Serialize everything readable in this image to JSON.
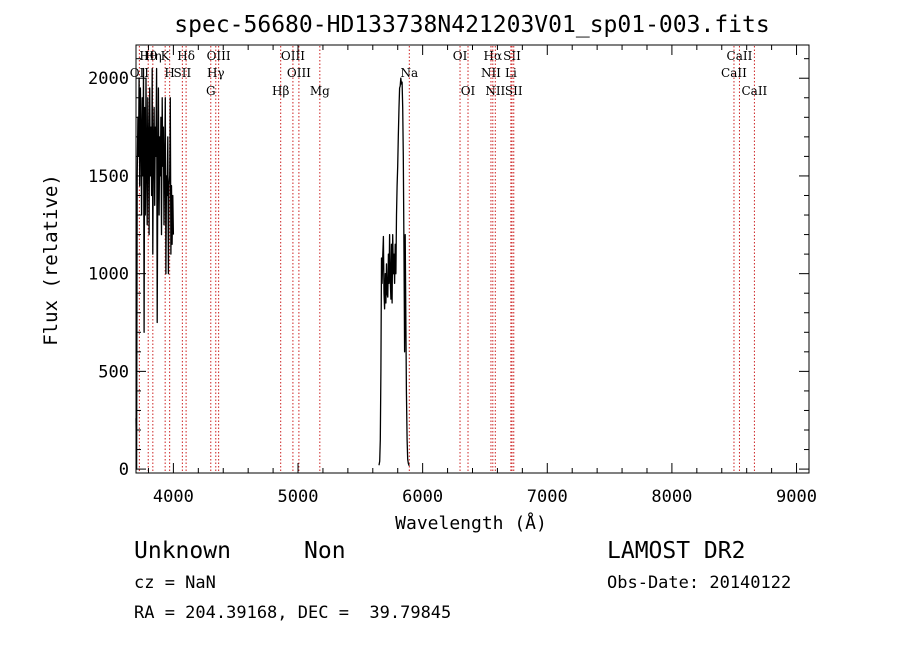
{
  "chart_data": {
    "type": "line",
    "title": "spec-56680-HD133738N421203V01_sp01-003.fits",
    "xlabel": "Wavelength (Å)",
    "ylabel": "Flux (relative)",
    "xlim": [
      3700,
      9100
    ],
    "ylim": [
      -20,
      2170
    ],
    "x_ticks": [
      4000,
      5000,
      6000,
      7000,
      8000,
      9000
    ],
    "x_tick_labels": [
      "4000",
      "5000",
      "6000",
      "7000",
      "8000",
      "9000"
    ],
    "y_ticks": [
      0,
      500,
      1000,
      1500,
      2000
    ],
    "y_tick_labels": [
      "0",
      "500",
      "1000",
      "1500",
      "2000"
    ],
    "grid": false,
    "line_color": "#000000",
    "marker_color": "#cc2222",
    "series": [
      {
        "segments": [
          {
            "x": [
              3700,
              3705,
              3710,
              3715,
              3720,
              3725,
              3730,
              3735,
              3740,
              3745,
              3750,
              3755,
              3760,
              3765,
              3770,
              3775,
              3780,
              3785,
              3790,
              3795,
              3800,
              3805,
              3810,
              3815,
              3820,
              3825,
              3830,
              3835,
              3840,
              3845,
              3850,
              3855,
              3860,
              3865,
              3870,
              3875,
              3880,
              3885,
              3890,
              3895,
              3900,
              3905,
              3910,
              3915,
              3920,
              3925,
              3930,
              3935,
              3940,
              3945,
              3950,
              3955,
              3960,
              3965,
              3970,
              3975,
              3980,
              3985,
              3990,
              3995,
              4000
            ],
            "y": [
              260,
              0,
              1500,
              1800,
              1600,
              2000,
              1450,
              1950,
              1700,
              1300,
              1900,
              1500,
              2050,
              700,
              1850,
              1300,
              2000,
              1550,
              1250,
              1900,
              1650,
              1200,
              1950,
              1500,
              1750,
              1400,
              2050,
              1100,
              1650,
              1850,
              1350,
              1750,
              1600,
              2050,
              750,
              1500,
              1950,
              1300,
              1700,
              1500,
              1800,
              1200,
              1900,
              1550,
              1750,
              1250,
              1600,
              1900,
              1000,
              1500,
              1400,
              1700,
              1000,
              1450,
              1500,
              1900,
              1100,
              1450,
              1150,
              1400,
              1200
            ]
          },
          {
            "x": [
              5650,
              5655,
              5660,
              5665,
              5670,
              5675,
              5680,
              5685,
              5690,
              5695,
              5700,
              5705,
              5710,
              5715,
              5720,
              5725,
              5730,
              5735,
              5740,
              5745,
              5750,
              5755,
              5760,
              5765,
              5770,
              5775,
              5780,
              5785,
              5790,
              5795,
              5800,
              5805,
              5810,
              5815,
              5820,
              5825,
              5830,
              5835,
              5840,
              5845,
              5850,
              5855,
              5860,
              5865,
              5870,
              5875,
              5880,
              5885,
              5890,
              5895
            ],
            "y": [
              20,
              40,
              150,
              500,
              1080,
              950,
              1100,
              1190,
              900,
              820,
              1000,
              850,
              1050,
              900,
              880,
              1100,
              950,
              1200,
              980,
              870,
              1150,
              850,
              1200,
              1000,
              1100,
              950,
              1150,
              1000,
              1300,
              1450,
              1550,
              1700,
              1850,
              1950,
              1960,
              2000,
              1970,
              1980,
              1850,
              1600,
              1100,
              600,
              1200,
              800,
              400,
              150,
              50,
              30,
              20,
              20
            ]
          }
        ]
      }
    ],
    "lines": [
      {
        "label": "Hθ",
        "x": 3798,
        "row": 0
      },
      {
        "label": "Hη",
        "x": 3835,
        "row": 0
      },
      {
        "label": "K",
        "x": 3934,
        "row": 0
      },
      {
        "label": "Hδ",
        "x": 4102,
        "row": 0
      },
      {
        "label": "OIII",
        "x": 4363,
        "row": 0
      },
      {
        "label": "OIII",
        "x": 4959,
        "row": 0
      },
      {
        "label": "OI",
        "x": 6300,
        "row": 0
      },
      {
        "label": "Hα",
        "x": 6563,
        "row": 0
      },
      {
        "label": "SII",
        "x": 6717,
        "row": 0
      },
      {
        "label": "CaII",
        "x": 8542,
        "row": 0
      },
      {
        "label": "OII",
        "x": 3727,
        "row": 1
      },
      {
        "label": "H",
        "x": 3970,
        "row": 1
      },
      {
        "label": "SII",
        "x": 4072,
        "row": 1
      },
      {
        "label": "Hγ",
        "x": 4340,
        "row": 1
      },
      {
        "label": "OIII",
        "x": 5007,
        "row": 1
      },
      {
        "label": "Na",
        "x": 5893,
        "row": 1
      },
      {
        "label": "NII",
        "x": 6548,
        "row": 1
      },
      {
        "label": "Li",
        "x": 6708,
        "row": 1
      },
      {
        "label": "CaII",
        "x": 8498,
        "row": 1
      },
      {
        "label": "G",
        "x": 4300,
        "row": 2
      },
      {
        "label": "Hβ",
        "x": 4861,
        "row": 2
      },
      {
        "label": "Mg",
        "x": 5175,
        "row": 2
      },
      {
        "label": "OI",
        "x": 6364,
        "row": 2
      },
      {
        "label": "NII",
        "x": 6583,
        "row": 2
      },
      {
        "label": "SII",
        "x": 6731,
        "row": 2
      },
      {
        "label": "CaII",
        "x": 8662,
        "row": 2
      }
    ]
  },
  "info": {
    "class_label": "Unknown",
    "subclass_label": "Non",
    "survey_label": "LAMOST DR2",
    "cz_text": "cz = NaN",
    "obs_date_text": "Obs-Date: 20140122",
    "radec_text": "RA = 204.39168, DEC =  39.79845"
  }
}
